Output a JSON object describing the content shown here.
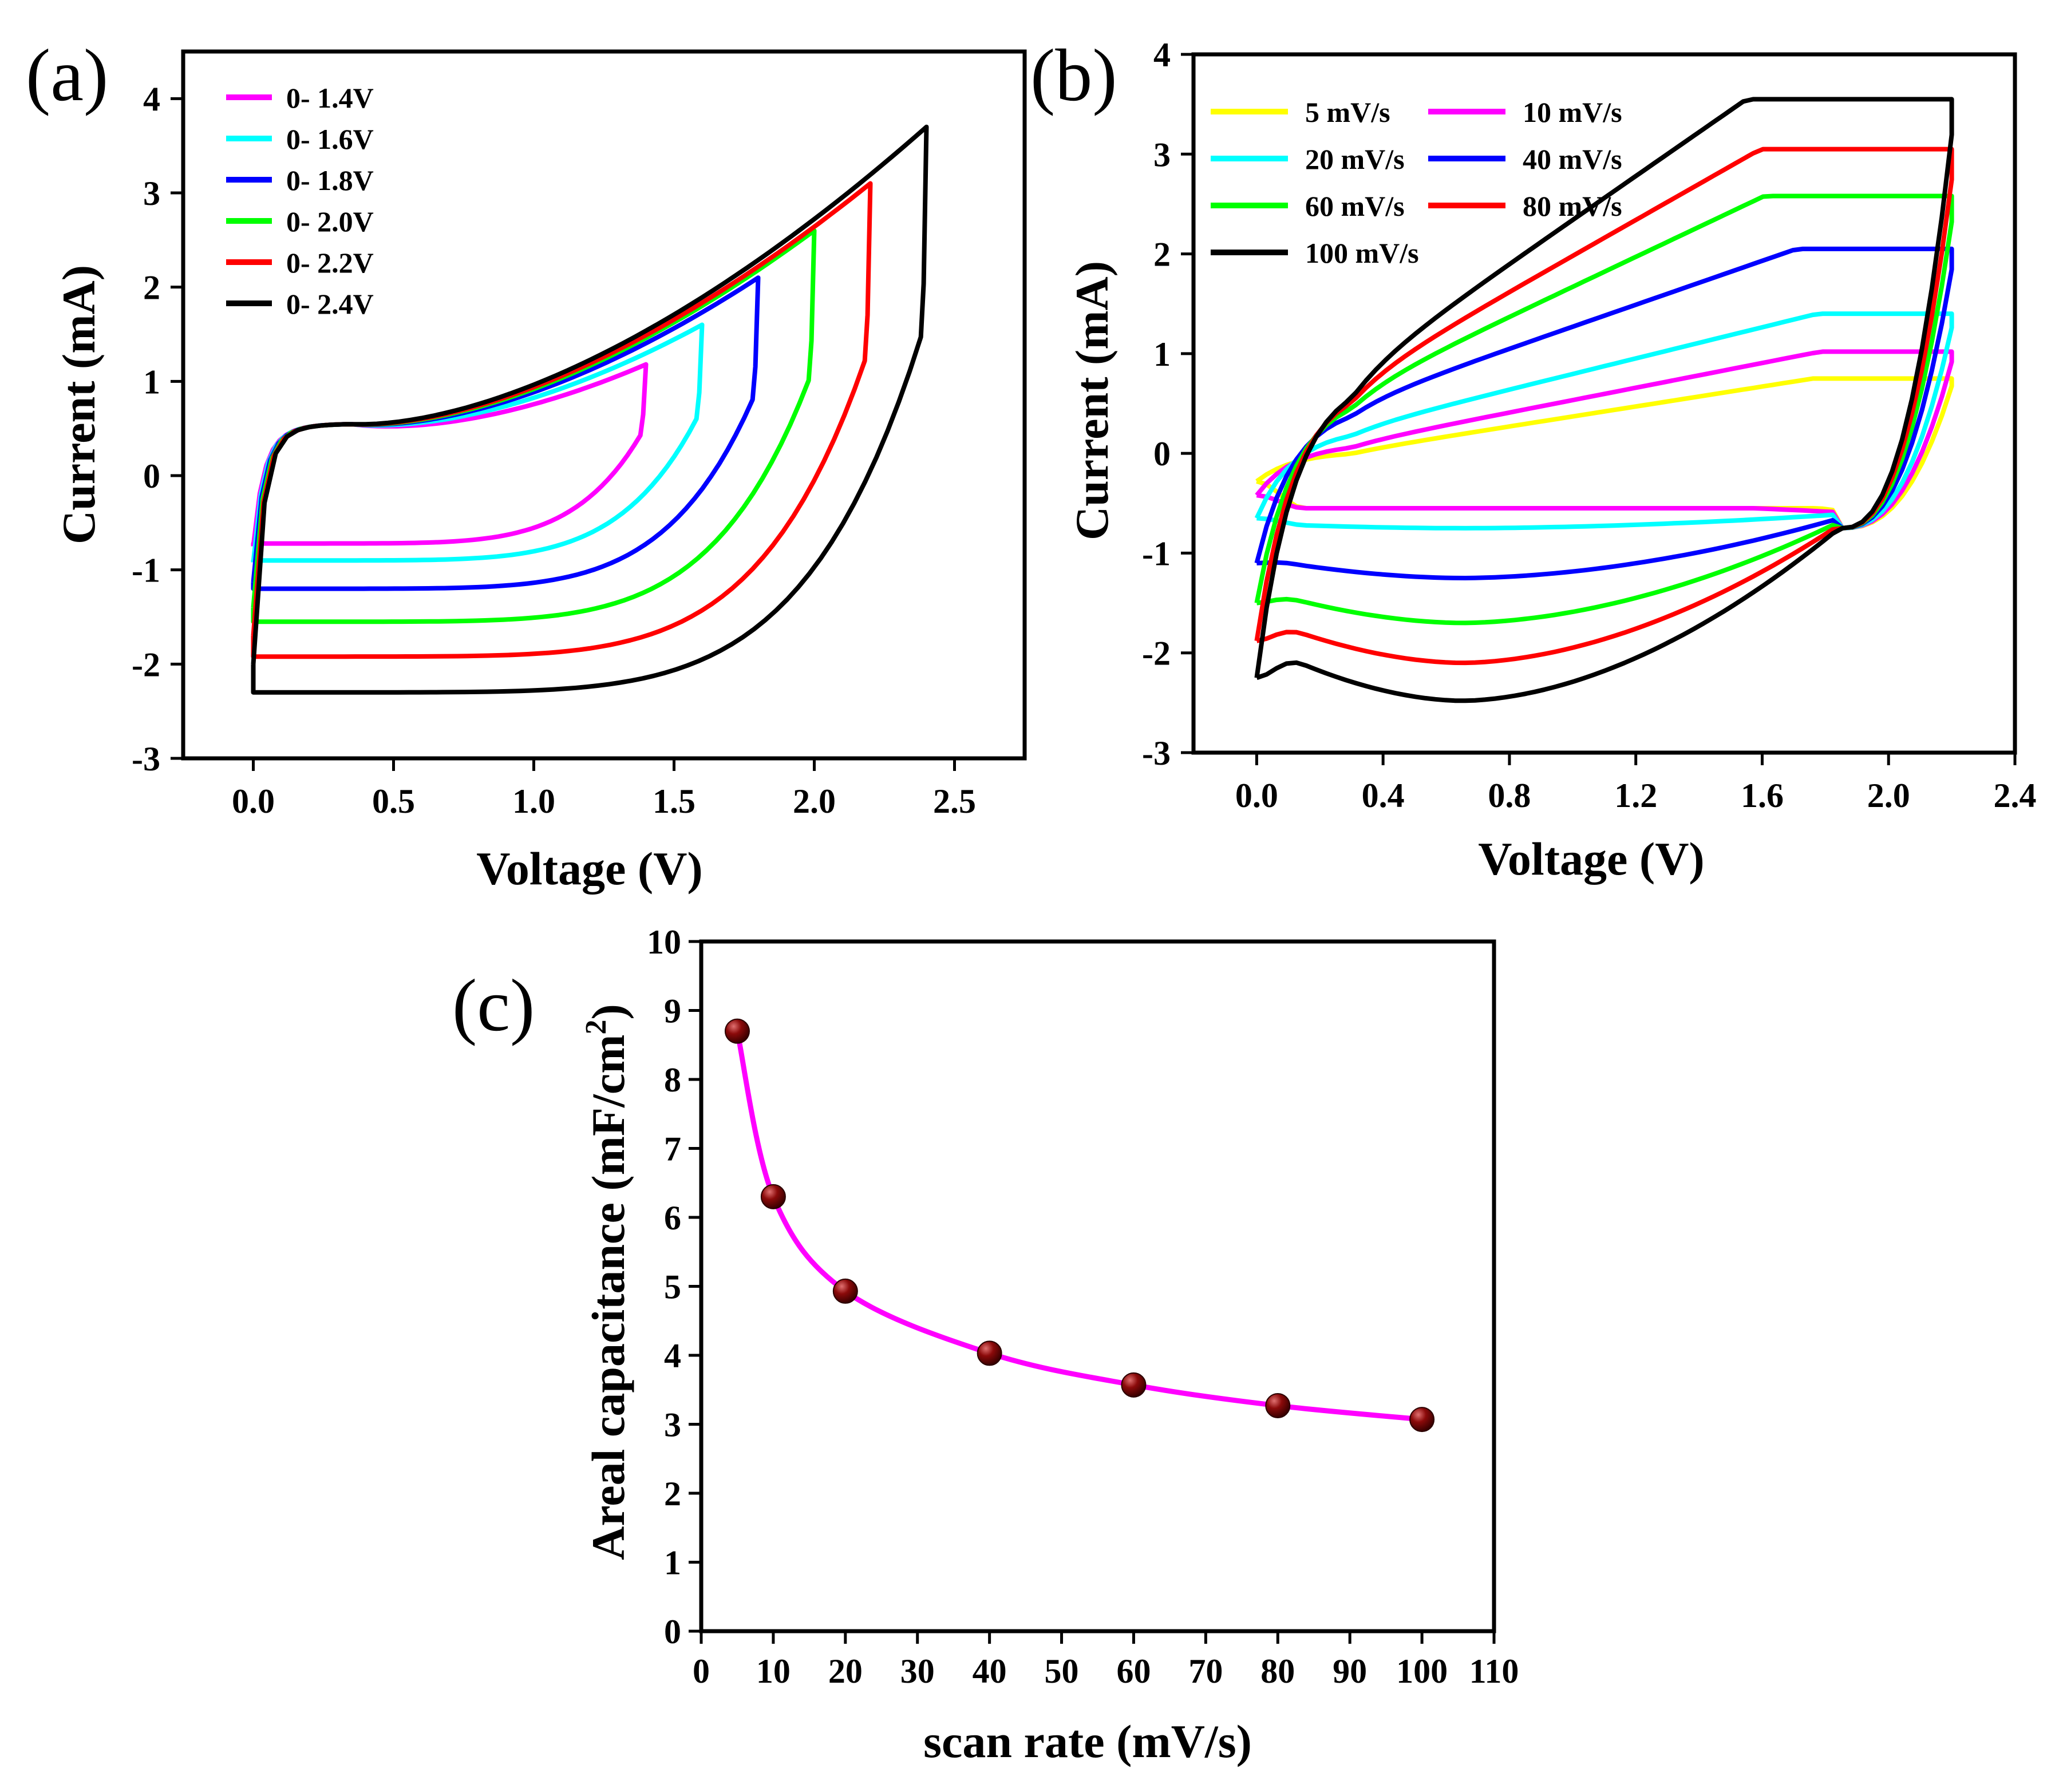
{
  "chart_data": [
    {
      "panel": "(a)",
      "type": "line",
      "xlabel": "Voltage (V)",
      "ylabel": "Current (mA)",
      "xlim": [
        -0.25,
        2.75
      ],
      "ylim": [
        -3,
        4.5
      ],
      "xticks": [
        "0.0",
        "0.5",
        "1.0",
        "1.5",
        "2.0",
        "2.5"
      ],
      "yticks": [
        "-3",
        "-2",
        "-1",
        "0",
        "1",
        "2",
        "3",
        "4"
      ],
      "legend_position": "top-left",
      "series": [
        {
          "name": "0- 1.4V",
          "color": "#ff00ff",
          "vmax": 1.4,
          "imax": 1.18,
          "icath": 0.58,
          "ianod": -0.75,
          "ibottom": -0.72,
          "istart_bottom": -0.75
        },
        {
          "name": "0- 1.6V",
          "color": "#00ffff",
          "vmax": 1.6,
          "imax": 1.6,
          "icath": 0.68,
          "ianod": -0.92,
          "ibottom": -0.9,
          "istart_bottom": -0.92
        },
        {
          "name": "0- 1.8V",
          "color": "#0000ff",
          "vmax": 1.8,
          "imax": 2.1,
          "icath": 0.8,
          "ianod": -1.13,
          "ibottom": -1.2,
          "istart_bottom": -1.13
        },
        {
          "name": "0- 2.0V",
          "color": "#00ff00",
          "vmax": 2.0,
          "imax": 2.6,
          "icath": 0.95,
          "ianod": -1.4,
          "ibottom": -1.55,
          "istart_bottom": -1.4
        },
        {
          "name": "0- 2.2V",
          "color": "#ff0000",
          "vmax": 2.2,
          "imax": 3.1,
          "icath": 1.1,
          "ianod": -1.7,
          "ibottom": -1.92,
          "istart_bottom": -1.68
        },
        {
          "name": "0- 2.4V",
          "color": "#000000",
          "vmax": 2.4,
          "imax": 3.7,
          "icath": 1.25,
          "ianod": -2.0,
          "ibottom": -2.3,
          "istart_bottom": -2.0
        }
      ]
    },
    {
      "panel": "(b)",
      "type": "line",
      "xlabel": "Voltage (V)",
      "ylabel": "Current (mA)",
      "xlim": [
        -0.2,
        2.4
      ],
      "ylim": [
        -3,
        4
      ],
      "xticks": [
        "0.0",
        "0.4",
        "0.8",
        "1.2",
        "1.6",
        "2.0",
        "2.4"
      ],
      "yticks": [
        "-3",
        "-2",
        "-1",
        "0",
        "1",
        "2",
        "3",
        "4"
      ],
      "legend_position": "top-left",
      "series": [
        {
          "name": "5 mV/s",
          "color": "#ffff00",
          "imax": 0.75,
          "iplat": 0.02,
          "islope": 0.5,
          "ibottom": -0.3,
          "istart": -0.28
        },
        {
          "name": "10 mV/s",
          "color": "#ff00ff",
          "imax": 1.02,
          "iplat": 0.1,
          "islope": 0.62,
          "ibottom": -0.48,
          "istart": -0.42
        },
        {
          "name": "20 mV/s",
          "color": "#00ffff",
          "imax": 1.4,
          "iplat": 0.25,
          "islope": 0.78,
          "ibottom": -0.75,
          "istart": -0.65
        },
        {
          "name": "40 mV/s",
          "color": "#0000ff",
          "imax": 2.05,
          "iplat": 0.5,
          "islope": 1.1,
          "ibottom": -1.25,
          "istart": -1.1
        },
        {
          "name": "60 mV/s",
          "color": "#00ff00",
          "imax": 2.58,
          "iplat": 0.62,
          "islope": 1.5,
          "ibottom": -1.7,
          "istart": -1.5
        },
        {
          "name": "80 mV/s",
          "color": "#ff0000",
          "imax": 3.05,
          "iplat": 0.72,
          "islope": 1.8,
          "ibottom": -2.1,
          "istart": -1.88
        },
        {
          "name": "100 mV/s",
          "color": "#000000",
          "imax": 3.55,
          "iplat": 0.8,
          "islope": 2.2,
          "ibottom": -2.48,
          "istart": -2.25
        }
      ]
    },
    {
      "panel": "(c)",
      "type": "line",
      "xlabel": "scan rate (mV/s)",
      "ylabel": "Areal capacitance (mF/cm",
      "ylabel_sup": "2",
      "ylabel_end": ")",
      "xlim": [
        0,
        110
      ],
      "ylim": [
        0,
        10
      ],
      "xticks": [
        "0",
        "10",
        "20",
        "30",
        "40",
        "50",
        "60",
        "70",
        "80",
        "90",
        "100",
        "110"
      ],
      "yticks": [
        "0",
        "1",
        "2",
        "3",
        "4",
        "5",
        "6",
        "7",
        "8",
        "9",
        "10"
      ],
      "line_color": "#ff00ff",
      "marker_color": "#8b0a0a",
      "x": [
        5,
        10,
        20,
        40,
        60,
        80,
        100
      ],
      "y": [
        8.7,
        6.3,
        4.93,
        4.03,
        3.57,
        3.27,
        3.07
      ]
    }
  ]
}
